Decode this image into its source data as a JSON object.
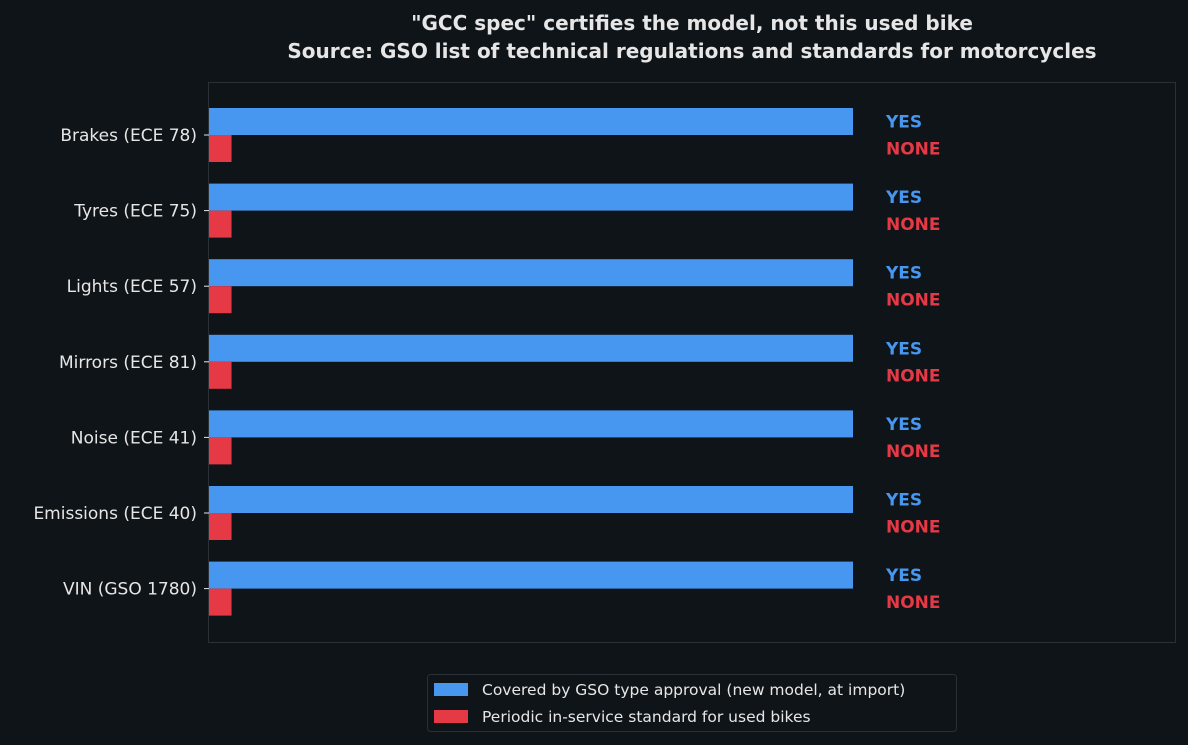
{
  "chart_data": {
    "type": "bar",
    "orientation": "horizontal",
    "title_lines": [
      "\"GCC spec\" certifies the model, not this used bike",
      "Source: GSO list of technical regulations and standards for motorcycles"
    ],
    "xlabel": "",
    "ylabel": "",
    "categories": [
      "Brakes (ECE 78)",
      "Tyres (ECE 75)",
      "Lights (ECE 57)",
      "Mirrors (ECE 81)",
      "Noise (ECE 41)",
      "Emissions (ECE 40)",
      "VIN (GSO 1780)"
    ],
    "series": [
      {
        "name": "Covered by GSO type approval (new model, at import)",
        "color": "#4796f0",
        "values": [
          1,
          1,
          1,
          1,
          1,
          1,
          1
        ],
        "value_labels": [
          "YES",
          "YES",
          "YES",
          "YES",
          "YES",
          "YES",
          "YES"
        ]
      },
      {
        "name": "Periodic in-service standard for used bikes",
        "color": "#e63946",
        "values": [
          0.035,
          0.035,
          0.035,
          0.035,
          0.035,
          0.035,
          0.035
        ],
        "value_labels": [
          "NONE",
          "NONE",
          "NONE",
          "NONE",
          "NONE",
          "NONE",
          "NONE"
        ]
      }
    ],
    "xlim": [
      0,
      1.5
    ],
    "grid": false,
    "legend_position": "bottom-center",
    "x_ticks_visible": false
  }
}
